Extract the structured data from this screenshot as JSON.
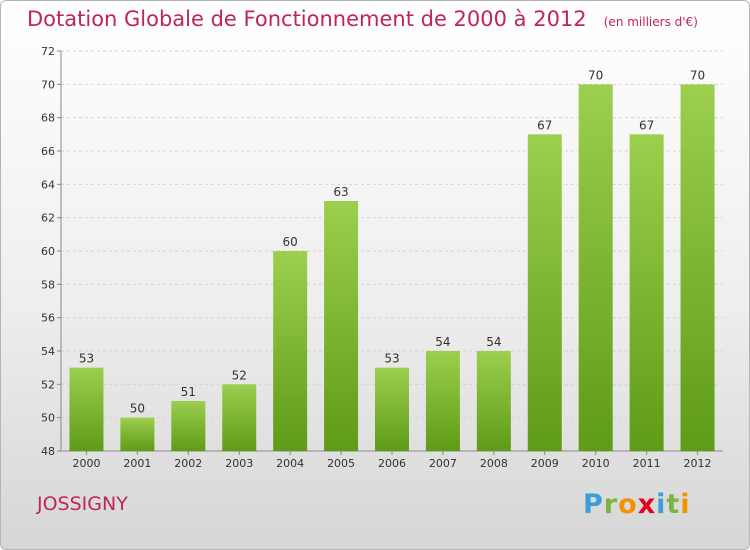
{
  "header": {
    "title": "Dotation Globale de Fonctionnement de 2000 à 2012",
    "subtitle": "(en milliers d'€)"
  },
  "location": "JOSSIGNY",
  "brand": {
    "letters": [
      "P",
      "r",
      "o",
      "x",
      "i",
      "t",
      "i"
    ],
    "colors": [
      "#3a9fd8",
      "#7cb342",
      "#f39200",
      "#e2001a",
      "#3a9fd8",
      "#7cb342",
      "#f39200"
    ]
  },
  "colors": {
    "bar_light": "#9ccf4e",
    "bar_dark": "#5e9b17",
    "accent": "#c0245c"
  },
  "chart_data": {
    "type": "bar",
    "categories": [
      "2000",
      "2001",
      "2002",
      "2003",
      "2004",
      "2005",
      "2006",
      "2007",
      "2008",
      "2009",
      "2010",
      "2011",
      "2012"
    ],
    "values": [
      53,
      50,
      51,
      52,
      60,
      63,
      53,
      54,
      54,
      67,
      70,
      67,
      70
    ],
    "title": "Dotation Globale de Fonctionnement de 2000 à 2012",
    "subtitle": "(en milliers d'€)",
    "ylim": [
      48,
      72
    ],
    "yticks": [
      48,
      50,
      52,
      54,
      56,
      58,
      60,
      62,
      64,
      66,
      68,
      70,
      72
    ],
    "grid": true,
    "data_labels": true
  }
}
